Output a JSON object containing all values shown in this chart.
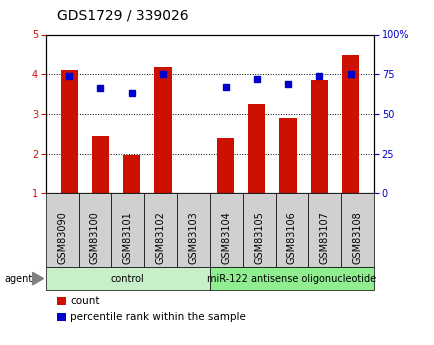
{
  "title": "GDS1729 / 339026",
  "samples": [
    "GSM83090",
    "GSM83100",
    "GSM83101",
    "GSM83102",
    "GSM83103",
    "GSM83104",
    "GSM83105",
    "GSM83106",
    "GSM83107",
    "GSM83108"
  ],
  "bar_values": [
    4.1,
    2.45,
    1.97,
    4.18,
    1.0,
    2.38,
    3.25,
    2.9,
    3.85,
    4.48
  ],
  "dot_values": [
    74,
    66,
    63,
    75,
    null,
    67,
    72,
    69,
    74,
    75
  ],
  "groups": [
    {
      "label": "control",
      "start": 0,
      "end": 4,
      "color": "#c8f0c8"
    },
    {
      "label": "miR-122 antisense oligonucleotide",
      "start": 5,
      "end": 9,
      "color": "#90ee90"
    }
  ],
  "bar_color": "#cc1100",
  "dot_color": "#0000cc",
  "ylim_left": [
    1,
    5
  ],
  "ylim_right": [
    0,
    100
  ],
  "yticks_left": [
    1,
    2,
    3,
    4,
    5
  ],
  "yticks_right": [
    0,
    25,
    50,
    75,
    100
  ],
  "ytick_right_labels": [
    "0",
    "25",
    "50",
    "75",
    "100%"
  ],
  "ylabel_left_color": "#cc1100",
  "ylabel_right_color": "#0000cc",
  "background_color": "#ffffff",
  "grid_color": "#000000",
  "legend_count_label": "count",
  "legend_pct_label": "percentile rank within the sample",
  "agent_label": "agent",
  "xticklabel_bg": "#d0d0d0",
  "title_fontsize": 10,
  "tick_fontsize": 7,
  "label_fontsize": 7,
  "group_fontsize": 7
}
